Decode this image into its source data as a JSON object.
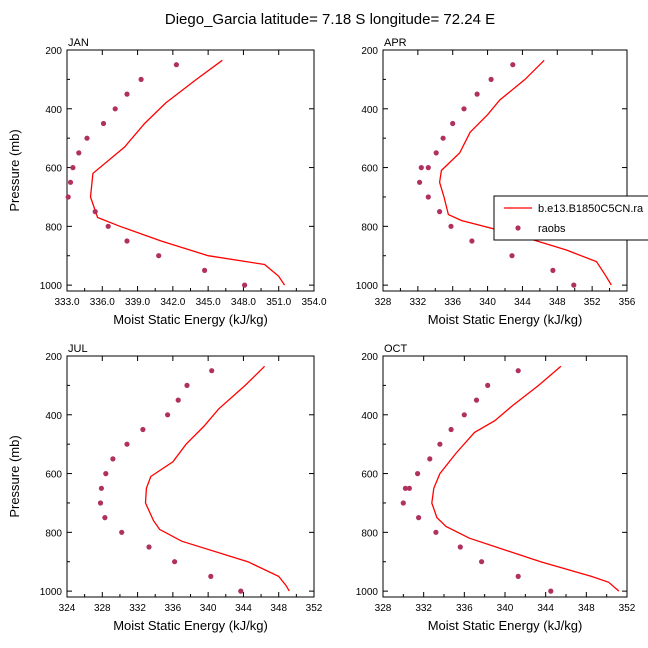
{
  "figure": {
    "title": "Diego_Garcia  latitude= 7.18 S longitude= 72.24 E",
    "colors": {
      "model": "#ff0000",
      "obs": "#b03060",
      "axis": "#000000"
    }
  },
  "legend": {
    "model_label": "b.e13.B1850C5CN.ra",
    "obs_label": "raobs",
    "placement": "right-middle of APR panel"
  },
  "chart_data": [
    {
      "type": "line",
      "panel": "JAN",
      "title": "JAN",
      "xlabel": "Moist Static Energy (kJ/kg)",
      "ylabel": "Pressure (mb)",
      "xlim": [
        333,
        354
      ],
      "ylim": [
        200,
        1020
      ],
      "y_inverted": true,
      "xticks": [
        333,
        336,
        339,
        342,
        345,
        348,
        351,
        354
      ],
      "xtick_labels": [
        "333.0",
        "336.0",
        "339.0",
        "342.0",
        "345.0",
        "348.0",
        "351.0",
        "354.0"
      ],
      "yticks": [
        200,
        400,
        600,
        800,
        1000
      ],
      "series": [
        {
          "name": "b.e13.B1850C5CN.ra",
          "style": "line",
          "x": [
            346.2,
            344.0,
            341.4,
            339.6,
            337.9,
            335.2,
            335.0,
            335.6,
            337.5,
            341.0,
            345.0,
            349.8,
            351.0,
            351.5
          ],
          "y": [
            235,
            300,
            380,
            450,
            530,
            620,
            700,
            770,
            800,
            850,
            900,
            930,
            970,
            1000
          ]
        },
        {
          "name": "raobs",
          "style": "markers",
          "x": [
            342.3,
            339.3,
            338.1,
            337.1,
            336.1,
            334.7,
            334.0,
            333.5,
            333.3,
            333.1,
            335.4,
            336.5,
            338.1,
            340.8,
            344.7,
            348.1
          ],
          "y": [
            250,
            300,
            350,
            400,
            450,
            500,
            550,
            600,
            650,
            700,
            750,
            800,
            850,
            900,
            950,
            1000
          ]
        }
      ]
    },
    {
      "type": "line",
      "panel": "APR",
      "title": "APR",
      "xlabel": "Moist Static Energy (kJ/kg)",
      "ylabel": "",
      "xlim": [
        328,
        356
      ],
      "ylim": [
        200,
        1020
      ],
      "y_inverted": true,
      "xticks": [
        328,
        332,
        336,
        340,
        344,
        348,
        352,
        356
      ],
      "xtick_labels": [
        "328",
        "332",
        "336",
        "340",
        "344",
        "348",
        "352",
        "356"
      ],
      "yticks": [
        200,
        400,
        600,
        800,
        1000
      ],
      "series": [
        {
          "name": "b.e13.B1850C5CN.ra",
          "style": "line",
          "x": [
            346.5,
            344.3,
            341.4,
            340.0,
            338.0,
            336.8,
            334.7,
            334.5,
            335.0,
            335.5,
            337.0,
            343.5,
            349.0,
            352.5,
            353.6,
            354.2
          ],
          "y": [
            235,
            300,
            370,
            420,
            480,
            550,
            610,
            650,
            700,
            760,
            780,
            830,
            880,
            920,
            970,
            1000
          ]
        },
        {
          "name": "raobs",
          "style": "markers",
          "x": [
            342.9,
            340.4,
            338.8,
            337.3,
            336.0,
            334.9,
            334.1,
            333.2,
            332.4,
            332.2,
            333.2,
            334.5,
            335.8,
            338.2,
            342.8,
            347.5,
            349.9
          ],
          "y": [
            250,
            300,
            350,
            400,
            450,
            500,
            550,
            600,
            600,
            650,
            700,
            750,
            800,
            850,
            900,
            950,
            1000
          ]
        }
      ]
    },
    {
      "type": "line",
      "panel": "JUL",
      "title": "JUL",
      "xlabel": "Moist Static Energy (kJ/kg)",
      "ylabel": "Pressure (mb)",
      "xlim": [
        324,
        352
      ],
      "ylim": [
        200,
        1020
      ],
      "y_inverted": true,
      "xticks": [
        324,
        328,
        332,
        336,
        340,
        344,
        348,
        352
      ],
      "xtick_labels": [
        "324",
        "328",
        "332",
        "336",
        "340",
        "344",
        "348",
        "352"
      ],
      "yticks": [
        200,
        400,
        600,
        800,
        1000
      ],
      "series": [
        {
          "name": "b.e13.B1850C5CN.ra",
          "style": "line",
          "x": [
            346.4,
            344.2,
            341.2,
            339.5,
            337.5,
            336.0,
            333.5,
            333.0,
            332.9,
            333.8,
            334.5,
            337.0,
            344.5,
            348.0,
            348.8,
            349.2
          ],
          "y": [
            235,
            300,
            380,
            440,
            500,
            560,
            610,
            650,
            700,
            760,
            790,
            830,
            900,
            950,
            980,
            1000
          ]
        },
        {
          "name": "raobs",
          "style": "markers",
          "x": [
            340.4,
            337.6,
            336.6,
            335.4,
            332.6,
            330.8,
            329.2,
            328.4,
            327.9,
            327.8,
            328.3,
            330.2,
            333.3,
            336.2,
            340.3,
            343.7
          ],
          "y": [
            250,
            300,
            350,
            400,
            450,
            500,
            550,
            600,
            650,
            700,
            750,
            800,
            850,
            900,
            950,
            1000
          ]
        }
      ]
    },
    {
      "type": "line",
      "panel": "OCT",
      "title": "OCT",
      "xlabel": "Moist Static Energy (kJ/kg)",
      "ylabel": "",
      "xlim": [
        328,
        352
      ],
      "ylim": [
        200,
        1020
      ],
      "y_inverted": true,
      "xticks": [
        328,
        332,
        336,
        340,
        344,
        348,
        352
      ],
      "xtick_labels": [
        "328",
        "332",
        "336",
        "340",
        "344",
        "348",
        "352"
      ],
      "yticks": [
        200,
        400,
        600,
        800,
        1000
      ],
      "series": [
        {
          "name": "b.e13.B1850C5CN.ra",
          "style": "line",
          "x": [
            345.5,
            343.3,
            340.7,
            339.0,
            337.0,
            335.2,
            333.6,
            333.0,
            332.8,
            333.3,
            334.2,
            336.5,
            343.5,
            348.5,
            350.2,
            351.2
          ],
          "y": [
            235,
            300,
            370,
            420,
            460,
            530,
            600,
            650,
            700,
            750,
            780,
            820,
            900,
            950,
            970,
            1000
          ]
        },
        {
          "name": "raobs",
          "style": "markers",
          "x": [
            341.3,
            338.3,
            337.2,
            336.0,
            334.7,
            333.6,
            332.6,
            331.4,
            330.6,
            330.2,
            330.0,
            331.5,
            333.2,
            335.6,
            337.7,
            341.3,
            344.5
          ],
          "y": [
            250,
            300,
            350,
            400,
            450,
            500,
            550,
            600,
            650,
            650,
            700,
            750,
            800,
            850,
            900,
            950,
            1000
          ]
        }
      ]
    }
  ]
}
